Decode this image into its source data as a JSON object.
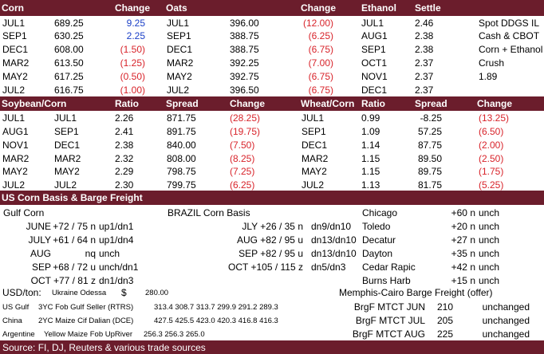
{
  "header1": {
    "corn": "Corn",
    "change": "Change",
    "oats": "Oats",
    "change2": "Change",
    "ethanol": "Ethanol",
    "settle": "Settle"
  },
  "corn_rows": [
    {
      "m": "JUL1",
      "p": "689.25",
      "c": "9.25",
      "cc": "blue"
    },
    {
      "m": "SEP1",
      "p": "630.25",
      "c": "2.25",
      "cc": "blue"
    },
    {
      "m": "DEC1",
      "p": "608.00",
      "c": "(1.50)",
      "cc": "red"
    },
    {
      "m": "MAR2",
      "p": "613.50",
      "c": "(1.25)",
      "cc": "red"
    },
    {
      "m": "MAY2",
      "p": "617.25",
      "c": "(0.50)",
      "cc": "red"
    },
    {
      "m": "JUL2",
      "p": "616.75",
      "c": "(1.00)",
      "cc": "red"
    }
  ],
  "oats_rows": [
    {
      "m": "JUL1",
      "p": "396.00",
      "c": "(12.00)"
    },
    {
      "m": "SEP1",
      "p": "388.75",
      "c": "(6.25)"
    },
    {
      "m": "DEC1",
      "p": "388.75",
      "c": "(6.75)"
    },
    {
      "m": "MAR2",
      "p": "392.25",
      "c": "(7.00)"
    },
    {
      "m": "MAY2",
      "p": "392.75",
      "c": "(6.75)"
    },
    {
      "m": "JUL2",
      "p": "396.50",
      "c": "(6.75)"
    }
  ],
  "ethanol_rows": [
    {
      "m": "JUL1",
      "s": "2.46"
    },
    {
      "m": "AUG1",
      "s": "2.38"
    },
    {
      "m": "SEP1",
      "s": "2.38"
    },
    {
      "m": "OCT1",
      "s": "2.37"
    },
    {
      "m": "NOV1",
      "s": "2.37"
    },
    {
      "m": "DEC1",
      "s": "2.37"
    }
  ],
  "ddgs": [
    "Spot DDGS IL",
    "Cash & CBOT",
    "Corn + Ethanol",
    "Crush",
    "1.89",
    ""
  ],
  "header2": {
    "soycorn": "Soybean/Corn",
    "ratio": "Ratio",
    "spread": "Spread",
    "change": "Change",
    "wheatcorn": "Wheat/Corn",
    "ratio2": "Ratio",
    "spread2": "Spread",
    "change2": "Change"
  },
  "soycorn_rows": [
    {
      "a": "JUL1",
      "b": "JUL1",
      "r": "2.26",
      "s": "871.75",
      "c": "(28.25)"
    },
    {
      "a": "AUG1",
      "b": "SEP1",
      "r": "2.41",
      "s": "891.75",
      "c": "(19.75)"
    },
    {
      "a": "NOV1",
      "b": "DEC1",
      "r": "2.38",
      "s": "840.00",
      "c": "(7.50)"
    },
    {
      "a": "MAR2",
      "b": "MAR2",
      "r": "2.32",
      "s": "808.00",
      "c": "(8.25)"
    },
    {
      "a": "MAY2",
      "b": "MAY2",
      "r": "2.29",
      "s": "798.75",
      "c": "(7.25)"
    },
    {
      "a": "JUL2",
      "b": "JUL2",
      "r": "2.30",
      "s": "799.75",
      "c": "(6.25)"
    }
  ],
  "wheatcorn_rows": [
    {
      "m": "JUL1",
      "r": "0.99",
      "s": "-8.25",
      "c": "(13.25)"
    },
    {
      "m": "SEP1",
      "r": "1.09",
      "s": "57.25",
      "c": "(6.50)"
    },
    {
      "m": "DEC1",
      "r": "1.14",
      "s": "87.75",
      "c": "(2.00)"
    },
    {
      "m": "MAR2",
      "r": "1.15",
      "s": "89.50",
      "c": "(2.50)"
    },
    {
      "m": "MAY2",
      "r": "1.15",
      "s": "89.75",
      "c": "(1.75)"
    },
    {
      "m": "JUL2",
      "r": "1.13",
      "s": "81.75",
      "c": "(5.25)"
    }
  ],
  "header3": "US Corn Basis & Barge Freight",
  "gulf_title": "Gulf Corn",
  "gulf_rows": [
    {
      "m": "JUNE",
      "v": "+72 / 75 n",
      "d": "up1/dn1"
    },
    {
      "m": "JULY",
      "v": "+61 / 64 n",
      "d": "up1/dn4"
    },
    {
      "m": "AUG",
      "v": "nq",
      "d": "unch"
    },
    {
      "m": "SEP",
      "v": "+68 / 72 u",
      "d": "unch/dn1"
    },
    {
      "m": "OCT",
      "v": "+77 / 81 z",
      "d": "dn1/dn3"
    }
  ],
  "brazil_title": "BRAZIL Corn Basis",
  "brazil_rows": [
    {
      "m": "JLY",
      "v": "+26 / 35 n",
      "d": "dn9/dn10"
    },
    {
      "m": "AUG",
      "v": "+82 / 95 u",
      "d": "dn13/dn10"
    },
    {
      "m": "SEP",
      "v": "+82 / 95 u",
      "d": "dn13/dn10"
    },
    {
      "m": "OCT",
      "v": "+105 / 115 z",
      "d": "dn5/dn3"
    }
  ],
  "city_rows": [
    {
      "city": "Chicago",
      "v": "+60 n",
      "d": "unch"
    },
    {
      "city": "Toledo",
      "v": "+20 n",
      "d": "unch"
    },
    {
      "city": "Decatur",
      "v": "+27 n",
      "d": "unch"
    },
    {
      "city": "Dayton",
      "v": "+35 n",
      "d": "unch"
    },
    {
      "city": "Cedar Rapic",
      "v": "+42 n",
      "d": "unch"
    },
    {
      "city": "Burns Harb",
      "v": "+15 n",
      "d": "unch"
    }
  ],
  "usd_ton": {
    "label": "USD/ton:",
    "src": "Ukraine Odessa",
    "cur": "$",
    "val": "280.00"
  },
  "memphis": "Memphis-Cairo Barge Freight (offer)",
  "fob_rows": [
    {
      "origin": "US Gulf",
      "desc": "3YC Fob Gulf Seller (RTRS)",
      "vals": "313.4  308.7  313.7  299.9  291.2  289.3"
    },
    {
      "origin": "China",
      "desc": "2YC Maize Cif Dalian (DCE)",
      "vals": "427.5  425.5  423.0  420.3  416.8  416.3"
    },
    {
      "origin": "Argentine",
      "desc": "Yellow Maize Fob UpRiver",
      "vals": "256.3  256.3  265.0"
    }
  ],
  "barge_rows": [
    {
      "label": "BrgF MTCT JUN",
      "v": "210",
      "d": "unchanged"
    },
    {
      "label": "BrgF MTCT JUL",
      "v": "205",
      "d": "unchanged"
    },
    {
      "label": "BrgF MTCT AUG",
      "v": "225",
      "d": "unchanged"
    }
  ],
  "source": "Source: FI, DJ, Reuters & various trade sources"
}
